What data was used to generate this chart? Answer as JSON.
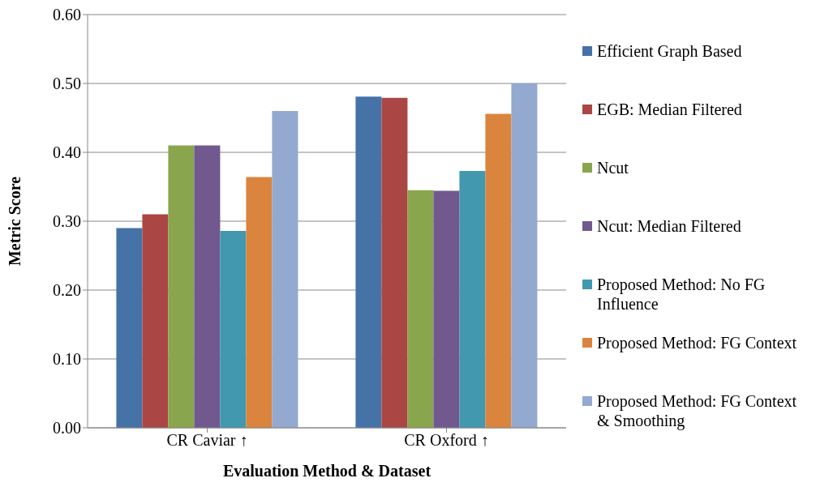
{
  "chart_data": {
    "type": "bar",
    "xlabel": "Evaluation Method & Dataset",
    "ylabel": "Metric Score",
    "categories": [
      "CR Caviar ↑",
      "CR Oxford ↑"
    ],
    "series": [
      {
        "name": "Efficient Graph Based",
        "color": "#4572a7",
        "values": [
          0.29,
          0.481
        ]
      },
      {
        "name": "EGB: Median Filtered",
        "color": "#aa4643",
        "values": [
          0.31,
          0.479
        ]
      },
      {
        "name": "Ncut",
        "color": "#89a54e",
        "values": [
          0.41,
          0.345
        ]
      },
      {
        "name": "Ncut: Median Filtered",
        "color": "#71588f",
        "values": [
          0.41,
          0.344
        ]
      },
      {
        "name": "Proposed Method: No FG Influence",
        "color": "#4198af",
        "values": [
          0.286,
          0.373
        ]
      },
      {
        "name": "Proposed Method: FG Context",
        "color": "#db843d",
        "values": [
          0.364,
          0.456
        ]
      },
      {
        "name": "Proposed Method: FG Context & Smoothing",
        "color": "#93a9cf",
        "values": [
          0.46,
          0.5
        ]
      }
    ],
    "ylim": [
      0,
      0.6
    ],
    "yticks": [
      {
        "value": 0,
        "label": "0.00"
      },
      {
        "value": 0.1,
        "label": "0.10"
      },
      {
        "value": 0.2,
        "label": "0.20"
      },
      {
        "value": 0.3,
        "label": "0.30"
      },
      {
        "value": 0.4,
        "label": "0.40"
      },
      {
        "value": 0.5,
        "label": "0.50"
      },
      {
        "value": 0.6,
        "label": "0.60"
      }
    ],
    "grid": "y",
    "legend": "right"
  }
}
